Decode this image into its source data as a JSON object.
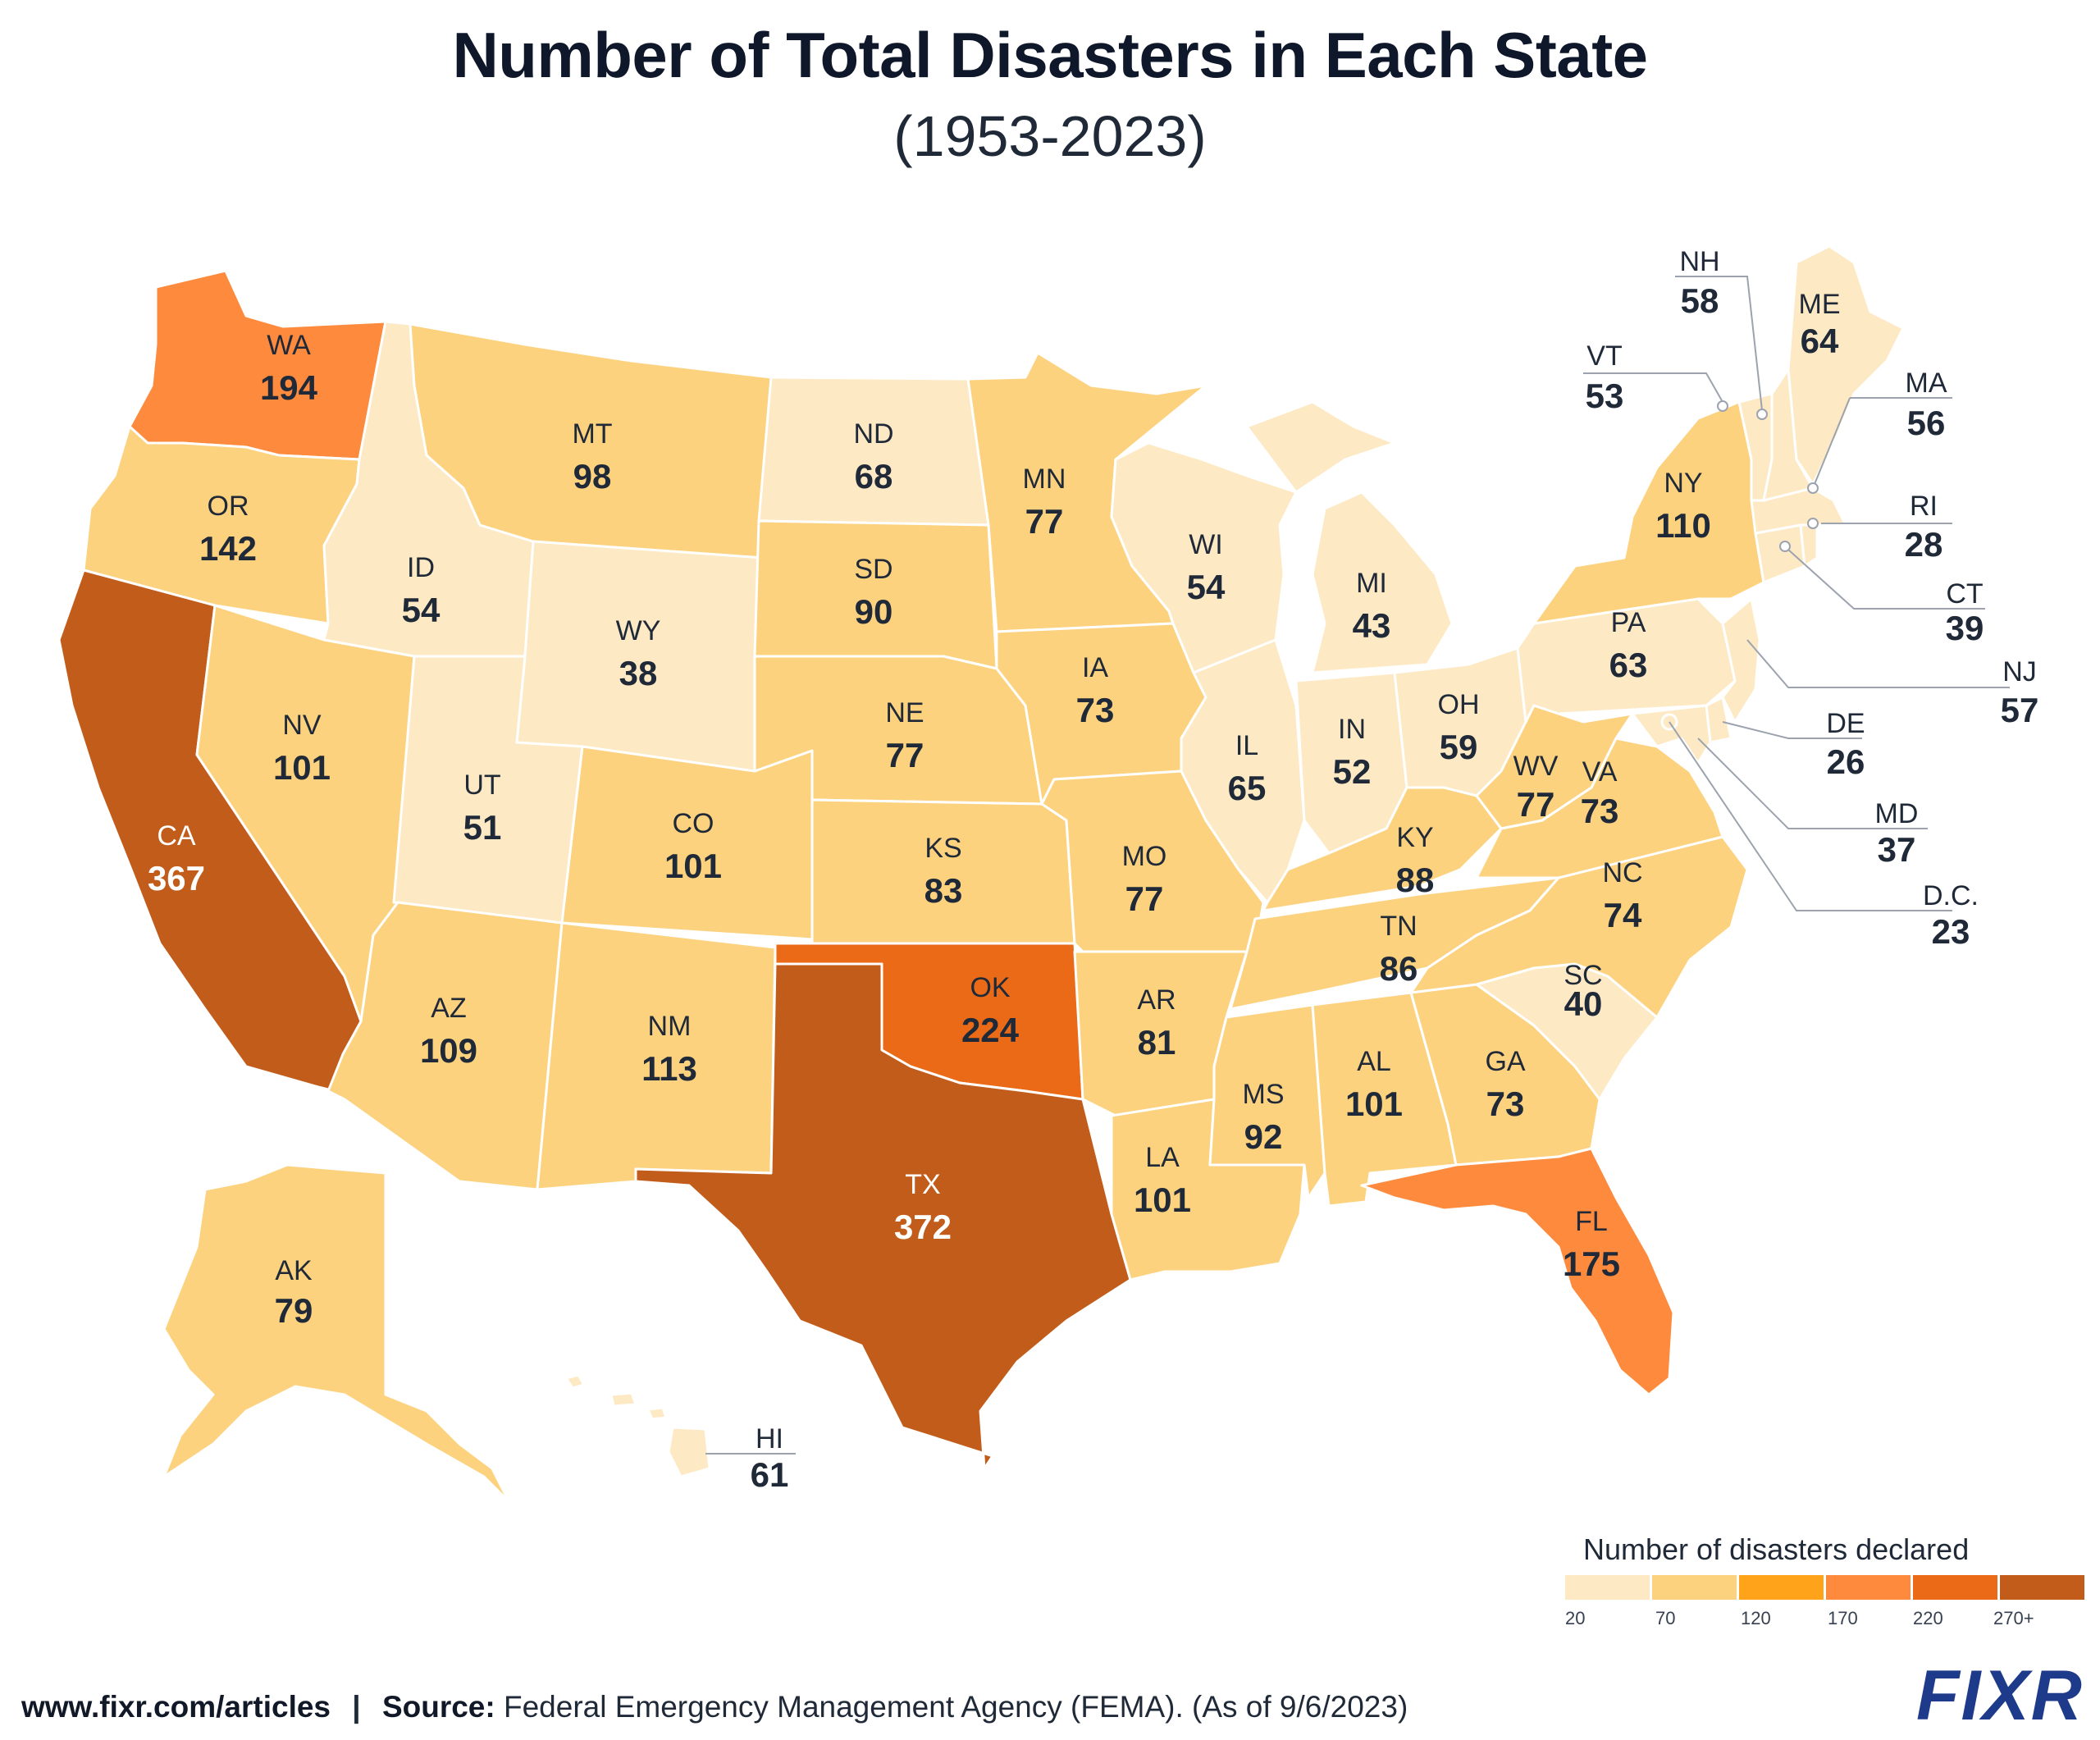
{
  "title": "Number of Total Disasters in Each State",
  "subtitle": "(1953-2023)",
  "legend": {
    "title": "Number of disasters declared",
    "ticks": [
      "20",
      "70",
      "120",
      "170",
      "220",
      "270+"
    ],
    "colors": [
      "#fde9c4",
      "#fcd27f",
      "#ffa31a",
      "#fe8a3d",
      "#ea6a17",
      "#c25c1a"
    ]
  },
  "states": {
    "WA": {
      "label": "WA",
      "value": "194",
      "color": "#fe8a3d"
    },
    "OR": {
      "label": "OR",
      "value": "142",
      "color": "#fcd27f"
    },
    "CA": {
      "label": "CA",
      "value": "367",
      "color": "#c25c1a"
    },
    "ID": {
      "label": "ID",
      "value": "54",
      "color": "#fde9c4"
    },
    "NV": {
      "label": "NV",
      "value": "101",
      "color": "#fcd27f"
    },
    "MT": {
      "label": "MT",
      "value": "98",
      "color": "#fcd27f"
    },
    "WY": {
      "label": "WY",
      "value": "38",
      "color": "#fde9c4"
    },
    "UT": {
      "label": "UT",
      "value": "51",
      "color": "#fde9c4"
    },
    "AZ": {
      "label": "AZ",
      "value": "109",
      "color": "#fcd27f"
    },
    "CO": {
      "label": "CO",
      "value": "101",
      "color": "#fcd27f"
    },
    "NM": {
      "label": "NM",
      "value": "113",
      "color": "#fcd27f"
    },
    "ND": {
      "label": "ND",
      "value": "68",
      "color": "#fde9c4"
    },
    "SD": {
      "label": "SD",
      "value": "90",
      "color": "#fcd27f"
    },
    "NE": {
      "label": "NE",
      "value": "77",
      "color": "#fcd27f"
    },
    "KS": {
      "label": "KS",
      "value": "83",
      "color": "#fcd27f"
    },
    "OK": {
      "label": "OK",
      "value": "224",
      "color": "#ea6a17"
    },
    "TX": {
      "label": "TX",
      "value": "372",
      "color": "#c25c1a"
    },
    "MN": {
      "label": "MN",
      "value": "77",
      "color": "#fcd27f"
    },
    "IA": {
      "label": "IA",
      "value": "73",
      "color": "#fcd27f"
    },
    "MO": {
      "label": "MO",
      "value": "77",
      "color": "#fcd27f"
    },
    "AR": {
      "label": "AR",
      "value": "81",
      "color": "#fcd27f"
    },
    "LA": {
      "label": "LA",
      "value": "101",
      "color": "#fcd27f"
    },
    "WI": {
      "label": "WI",
      "value": "54",
      "color": "#fde9c4"
    },
    "IL": {
      "label": "IL",
      "value": "65",
      "color": "#fde9c4"
    },
    "MI": {
      "label": "MI",
      "value": "43",
      "color": "#fde9c4"
    },
    "IN": {
      "label": "IN",
      "value": "52",
      "color": "#fde9c4"
    },
    "OH": {
      "label": "OH",
      "value": "59",
      "color": "#fde9c4"
    },
    "KY": {
      "label": "KY",
      "value": "88",
      "color": "#fcd27f"
    },
    "TN": {
      "label": "TN",
      "value": "86",
      "color": "#fcd27f"
    },
    "MS": {
      "label": "MS",
      "value": "92",
      "color": "#fcd27f"
    },
    "AL": {
      "label": "AL",
      "value": "101",
      "color": "#fcd27f"
    },
    "GA": {
      "label": "GA",
      "value": "73",
      "color": "#fcd27f"
    },
    "FL": {
      "label": "FL",
      "value": "175",
      "color": "#fe8a3d"
    },
    "SC": {
      "label": "SC",
      "value": "40",
      "color": "#fde9c4"
    },
    "NC": {
      "label": "NC",
      "value": "74",
      "color": "#fcd27f"
    },
    "VA": {
      "label": "VA",
      "value": "73",
      "color": "#fcd27f"
    },
    "WV": {
      "label": "WV",
      "value": "77",
      "color": "#fcd27f"
    },
    "PA": {
      "label": "PA",
      "value": "63",
      "color": "#fde9c4"
    },
    "NY": {
      "label": "NY",
      "value": "110",
      "color": "#fcd27f"
    },
    "VT": {
      "label": "VT",
      "value": "53",
      "color": "#fde9c4"
    },
    "NH": {
      "label": "NH",
      "value": "58",
      "color": "#fde9c4"
    },
    "ME": {
      "label": "ME",
      "value": "64",
      "color": "#fde9c4"
    },
    "MA": {
      "label": "MA",
      "value": "56",
      "color": "#fde9c4"
    },
    "RI": {
      "label": "RI",
      "value": "28",
      "color": "#fde9c4"
    },
    "CT": {
      "label": "CT",
      "value": "39",
      "color": "#fde9c4"
    },
    "NJ": {
      "label": "NJ",
      "value": "57",
      "color": "#fde9c4"
    },
    "DE": {
      "label": "DE",
      "value": "26",
      "color": "#fde9c4"
    },
    "MD": {
      "label": "MD",
      "value": "37",
      "color": "#fde9c4"
    },
    "DC": {
      "label": "D.C.",
      "value": "23",
      "color": "#fde9c4"
    },
    "AK": {
      "label": "AK",
      "value": "79",
      "color": "#fcd27f"
    },
    "HI": {
      "label": "HI",
      "value": "61",
      "color": "#fde9c4"
    }
  },
  "footer": {
    "url": "www.fixr.com/articles",
    "separator": "|",
    "source_label": "Source:",
    "source_text": "Federal Emergency Management Agency (FEMA). (As of 9/6/2023)"
  },
  "logo": "FIXR"
}
